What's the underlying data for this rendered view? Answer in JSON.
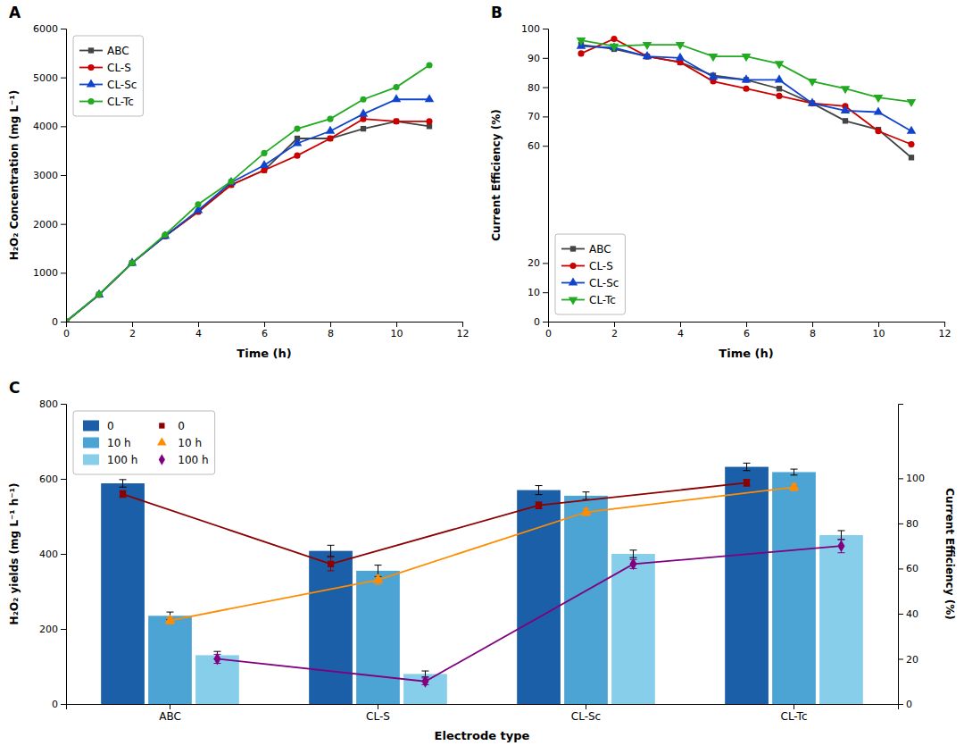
{
  "chart_data": [
    {
      "type": "line",
      "title": "A",
      "xlabel": "Time (h)",
      "ylabel": "H₂O₂ Concentration (mg L⁻¹)",
      "x": [
        0,
        1,
        2,
        3,
        4,
        5,
        6,
        7,
        8,
        9,
        10,
        11
      ],
      "series": [
        {
          "name": "ABC",
          "color": "#444444",
          "marker": "square",
          "values": [
            0,
            550,
            1200,
            1750,
            2250,
            2800,
            3100,
            3750,
            3750,
            3950,
            4100,
            4000
          ]
        },
        {
          "name": "CL-S",
          "color": "#cc0000",
          "marker": "circle",
          "values": [
            0,
            550,
            1200,
            1750,
            2250,
            2800,
            3100,
            3400,
            3750,
            4150,
            4100,
            4100
          ]
        },
        {
          "name": "CL-Sc",
          "color": "#1144cc",
          "marker": "triangle",
          "values": [
            0,
            550,
            1200,
            1750,
            2280,
            2850,
            3200,
            3650,
            3900,
            4250,
            4550,
            4550
          ]
        },
        {
          "name": "CL-Tc",
          "color": "#22aa22",
          "marker": "circle",
          "values": [
            0,
            560,
            1200,
            1780,
            2400,
            2870,
            3450,
            3950,
            4150,
            4550,
            4800,
            5250
          ]
        }
      ],
      "xlim": [
        0,
        12
      ],
      "xticks": [
        0,
        2,
        4,
        6,
        8,
        10,
        12
      ],
      "ylim": [
        0,
        6000
      ],
      "yticks": [
        0,
        1000,
        2000,
        3000,
        4000,
        5000,
        6000
      ],
      "grid": false,
      "legend": "upper left"
    },
    {
      "type": "line",
      "title": "B",
      "xlabel": "Time (h)",
      "ylabel": "Current Efficiency (%)",
      "x": [
        1,
        2,
        3,
        4,
        5,
        6,
        7,
        8,
        9,
        10,
        11
      ],
      "series": [
        {
          "name": "ABC",
          "color": "#444444",
          "marker": "square",
          "values": [
            94.5,
            93.0,
            90.5,
            88.5,
            84.0,
            82.5,
            79.5,
            74.5,
            68.5,
            65.5,
            56.0
          ]
        },
        {
          "name": "CL-S",
          "color": "#cc0000",
          "marker": "circle",
          "values": [
            91.5,
            96.5,
            90.5,
            88.5,
            82.0,
            79.5,
            77.0,
            74.5,
            73.5,
            65.0,
            60.5
          ]
        },
        {
          "name": "CL-Sc",
          "color": "#1144cc",
          "marker": "triangle",
          "values": [
            94.0,
            93.5,
            90.5,
            90.0,
            83.5,
            82.5,
            82.5,
            74.5,
            72.0,
            71.5,
            65.0
          ]
        },
        {
          "name": "CL-Tc",
          "color": "#22aa22",
          "marker": "triangle-down",
          "values": [
            96.0,
            94.0,
            94.5,
            94.5,
            90.5,
            90.5,
            88.0,
            82.0,
            79.5,
            76.5,
            75.0
          ]
        }
      ],
      "xlim": [
        0,
        12
      ],
      "xticks": [
        0,
        2,
        4,
        6,
        8,
        10,
        12
      ],
      "ylim": [
        0,
        100
      ],
      "yticks": [
        0,
        10,
        20,
        60,
        70,
        80,
        90,
        100
      ],
      "grid": false,
      "legend": "lower left"
    },
    {
      "type": "bar",
      "title": "C",
      "xlabel": "Electrode type",
      "ylabel": "H₂O₂ yields (mg L⁻¹ h⁻¹)",
      "y2label": "Current Efficiency (%)",
      "categories": [
        "ABC",
        "CL-S",
        "CL-Sc",
        "CL-Tc"
      ],
      "series": [
        {
          "name": "0",
          "type": "bar",
          "color": "#1a5fa8",
          "values": [
            588,
            408,
            570,
            632
          ],
          "errors": [
            10,
            15,
            12,
            10
          ]
        },
        {
          "name": "10 h",
          "type": "bar",
          "color": "#4ba4d4",
          "values": [
            235,
            355,
            555,
            618
          ],
          "errors": [
            10,
            15,
            10,
            8
          ]
        },
        {
          "name": "100 h",
          "type": "bar",
          "color": "#87ceeb",
          "values": [
            130,
            80,
            400,
            450
          ],
          "errors": [
            10,
            8,
            10,
            12
          ]
        },
        {
          "name": "0",
          "type": "line",
          "axis": "y2",
          "color": "#8B0000",
          "marker": "square",
          "values": [
            93,
            62,
            88,
            98
          ],
          "errors": [
            1.5,
            3,
            1.5,
            1.5
          ]
        },
        {
          "name": "10 h",
          "type": "line",
          "axis": "y2",
          "color": "#FF8C00",
          "marker": "triangle",
          "values": [
            37,
            55,
            85,
            96
          ],
          "errors": [
            1.5,
            2,
            1.5,
            1.5
          ]
        },
        {
          "name": "100 h",
          "type": "line",
          "axis": "y2",
          "color": "#800080",
          "marker": "diamond",
          "values": [
            20,
            10,
            62,
            70
          ],
          "errors": [
            2,
            1.5,
            2,
            3
          ]
        }
      ],
      "ylim": [
        0,
        800
      ],
      "yticks": [
        0,
        200,
        400,
        600,
        800
      ],
      "y2lim": [
        0,
        133
      ],
      "y2ticks": [
        0,
        20,
        40,
        60,
        80,
        100
      ],
      "grid": false,
      "legend": "upper left"
    }
  ]
}
